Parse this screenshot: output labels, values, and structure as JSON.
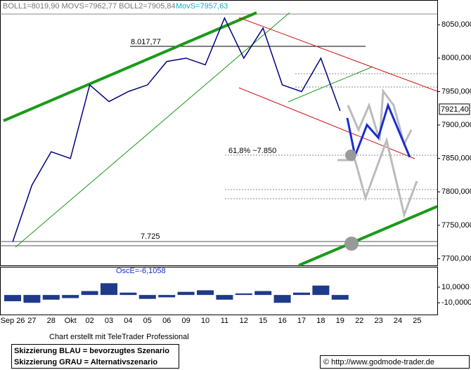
{
  "chart_data": [
    {
      "type": "line",
      "legend_text": "BOLL1=8019,90  MOVS=7962,77  BOLL2=7905,84",
      "movs_text": "MovS=7957,63",
      "annotations": [
        "8.017,77",
        "61,8% ~7.850",
        "7.725"
      ],
      "price_label": "7921,40",
      "categories": [
        "Sep 26",
        "27",
        "28",
        "Okt",
        "02",
        "03",
        "04",
        "05",
        "06",
        "09",
        "10",
        "11",
        "12",
        "15",
        "16",
        "17",
        "18",
        "19",
        "22",
        "23",
        "24",
        "25"
      ],
      "values": [
        7725,
        7810,
        7860,
        7850,
        7960,
        7935,
        7950,
        7960,
        7995,
        8000,
        7990,
        8060,
        8000,
        8045,
        7960,
        7950,
        8000,
        7921,
        null,
        null,
        null,
        null
      ],
      "color": "#000080",
      "ylim": [
        7690,
        8087
      ],
      "yticks": [
        {
          "value": 7700,
          "label": "7700,000"
        },
        {
          "value": 7750,
          "label": "7750,000"
        },
        {
          "value": 7800,
          "label": "7800,000"
        },
        {
          "value": 7850,
          "label": "7850,000"
        },
        {
          "value": 7900,
          "label": "7900,000"
        },
        {
          "value": 7950,
          "label": "7950,000"
        },
        {
          "value": 8000,
          "label": "8000,000"
        },
        {
          "value": 8050,
          "label": "8050,000"
        }
      ]
    },
    {
      "type": "bar",
      "title": "OscE=-6,1058",
      "values": [
        -8,
        -10,
        -6,
        -4,
        5,
        15,
        3,
        -5,
        -3,
        4,
        6,
        -6,
        2,
        5,
        -10,
        3,
        12,
        -6,
        null,
        null,
        null,
        null
      ],
      "color": "#1f3a8a",
      "ylim": [
        -25,
        36
      ],
      "yticks": [
        {
          "value": -10,
          "label": "-10,0000"
        },
        {
          "value": 10,
          "label": "10,0000"
        }
      ]
    }
  ],
  "footer": {
    "credit": "Chart erstellt mit TeleTrader Professional",
    "note_blue": "Skizzierung BLAU = bevorzugtes Szenario",
    "note_grey": "Skizzierung GRAU = Alternativszenario",
    "source": "© http://www.godmode-trader.de"
  }
}
